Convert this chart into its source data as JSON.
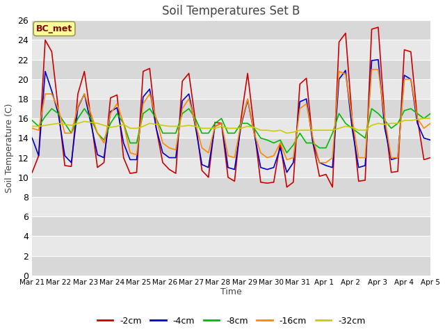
{
  "title": "Soil Temperatures Set B",
  "xlabel": "Time",
  "ylabel": "Soil Temperature (C)",
  "annotation": "BC_met",
  "ylim": [
    0,
    26
  ],
  "yticks": [
    0,
    2,
    4,
    6,
    8,
    10,
    12,
    14,
    16,
    18,
    20,
    22,
    24,
    26
  ],
  "x_labels": [
    "Mar 21",
    "Mar 22",
    "Mar 23",
    "Mar 24",
    "Mar 25",
    "Mar 26",
    "Mar 27",
    "Mar 28",
    "Mar 29",
    "Mar 30",
    "Mar 31",
    "Apr 1",
    "Apr 2",
    "Apr 3",
    "Apr 4",
    "Apr 5"
  ],
  "colors": {
    "-2cm": "#cc0000",
    "-4cm": "#0000cc",
    "-8cm": "#00bb00",
    "-16cm": "#ff8800",
    "-32cm": "#cccc00"
  },
  "series": {
    "-2cm": [
      10.5,
      12.2,
      24.0,
      22.8,
      17.0,
      11.2,
      11.1,
      18.5,
      20.8,
      16.0,
      11.0,
      11.5,
      18.1,
      18.4,
      12.0,
      10.4,
      10.5,
      20.8,
      21.1,
      15.0,
      11.5,
      10.8,
      10.4,
      19.8,
      20.6,
      15.8,
      10.7,
      10.0,
      15.6,
      15.5,
      10.0,
      9.6,
      16.0,
      20.6,
      15.0,
      9.5,
      9.4,
      9.5,
      13.5,
      9.0,
      9.5,
      19.5,
      20.1,
      13.5,
      10.1,
      10.3,
      9.0,
      23.8,
      24.7,
      16.0,
      9.6,
      9.7,
      25.1,
      25.3,
      16.0,
      10.5,
      10.6,
      23.0,
      22.8,
      16.0,
      11.8,
      12.0
    ],
    "-4cm": [
      14.0,
      12.2,
      20.8,
      18.8,
      16.5,
      12.2,
      11.5,
      17.1,
      18.5,
      15.5,
      12.3,
      12.0,
      16.7,
      17.1,
      13.5,
      11.8,
      11.8,
      18.2,
      19.0,
      15.0,
      12.5,
      12.0,
      12.0,
      17.8,
      18.5,
      15.2,
      11.3,
      11.0,
      15.2,
      15.5,
      11.0,
      10.8,
      15.3,
      17.9,
      14.5,
      11.0,
      10.8,
      11.0,
      13.0,
      10.5,
      11.5,
      17.7,
      18.0,
      13.5,
      11.5,
      11.2,
      11.0,
      20.0,
      20.9,
      15.0,
      11.0,
      11.2,
      21.9,
      22.0,
      15.0,
      11.8,
      12.0,
      20.4,
      20.0,
      15.5,
      14.0,
      13.8
    ],
    "-8cm": [
      15.8,
      15.2,
      16.2,
      17.0,
      16.5,
      15.5,
      14.5,
      16.0,
      17.0,
      16.0,
      14.5,
      13.8,
      15.5,
      16.5,
      15.5,
      13.5,
      13.5,
      16.5,
      17.0,
      16.0,
      14.5,
      14.5,
      14.5,
      16.5,
      17.0,
      16.0,
      14.5,
      14.5,
      15.5,
      16.0,
      14.5,
      14.5,
      15.5,
      15.5,
      15.0,
      14.0,
      13.8,
      13.5,
      13.8,
      12.5,
      13.3,
      14.5,
      13.5,
      13.5,
      13.0,
      13.0,
      14.5,
      16.5,
      15.5,
      15.0,
      14.5,
      14.0,
      17.0,
      16.5,
      15.8,
      15.0,
      15.5,
      16.8,
      17.0,
      16.5,
      16.0,
      16.5
    ],
    "-16cm": [
      15.0,
      14.8,
      18.5,
      18.5,
      17.0,
      14.5,
      14.5,
      17.2,
      18.5,
      16.5,
      14.5,
      13.5,
      16.5,
      17.5,
      15.5,
      12.5,
      12.3,
      17.5,
      18.5,
      16.0,
      13.5,
      13.0,
      12.8,
      17.0,
      18.0,
      15.5,
      13.0,
      12.5,
      15.2,
      15.5,
      12.2,
      12.0,
      15.5,
      18.0,
      14.5,
      12.5,
      12.0,
      12.2,
      13.5,
      11.8,
      12.0,
      17.0,
      17.5,
      14.0,
      11.5,
      11.5,
      12.0,
      20.8,
      20.5,
      16.0,
      12.0,
      12.0,
      21.0,
      21.0,
      16.0,
      12.0,
      12.0,
      20.0,
      20.0,
      16.0,
      15.0,
      15.5
    ],
    "-32cm": [
      15.2,
      15.2,
      15.3,
      15.4,
      15.5,
      15.4,
      15.3,
      15.5,
      15.7,
      15.6,
      15.5,
      15.3,
      15.1,
      15.2,
      15.4,
      15.0,
      15.0,
      15.2,
      15.5,
      15.4,
      15.3,
      15.2,
      15.2,
      15.2,
      15.3,
      15.2,
      15.0,
      15.0,
      15.0,
      15.2,
      15.0,
      15.0,
      15.0,
      15.2,
      15.1,
      14.8,
      14.8,
      14.7,
      14.8,
      14.5,
      14.6,
      14.8,
      14.8,
      14.8,
      14.8,
      14.8,
      14.8,
      15.0,
      15.2,
      15.1,
      14.8,
      14.8,
      15.3,
      15.5,
      15.4,
      15.5,
      15.5,
      15.8,
      15.8,
      15.9,
      16.0,
      16.0
    ]
  },
  "band_colors": [
    "#d8d8d8",
    "#e8e8e8"
  ],
  "grid_color": "#ffffff",
  "fig_bg": "#ffffff",
  "linewidth": 1.2,
  "legend_entries": [
    "-2cm",
    "-4cm",
    "-8cm",
    "-16cm",
    "-32cm"
  ]
}
